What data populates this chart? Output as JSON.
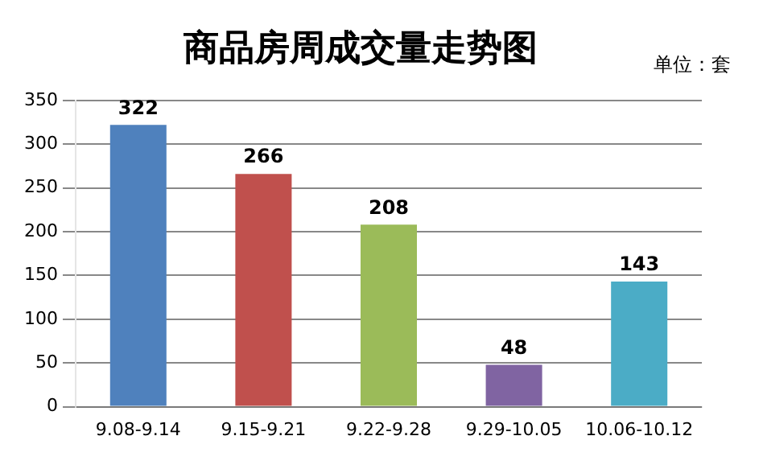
{
  "chart_data": {
    "type": "bar",
    "title": "商品房周成交量走势图",
    "annotations": [
      "单位：套"
    ],
    "categories": [
      "9.08-9.14",
      "9.15-9.21",
      "9.22-9.28",
      "9.29-10.05",
      "10.06-10.12"
    ],
    "values": [
      322,
      266,
      208,
      48,
      143
    ],
    "colors": [
      "#4f81bd",
      "#c0504d",
      "#9bbb59",
      "#8064a2",
      "#4bacc6"
    ],
    "ylim": [
      0,
      350
    ],
    "yticks": [
      0,
      50,
      100,
      150,
      200,
      250,
      300,
      350
    ],
    "grid": "y",
    "data_labels": true,
    "legend": false
  }
}
